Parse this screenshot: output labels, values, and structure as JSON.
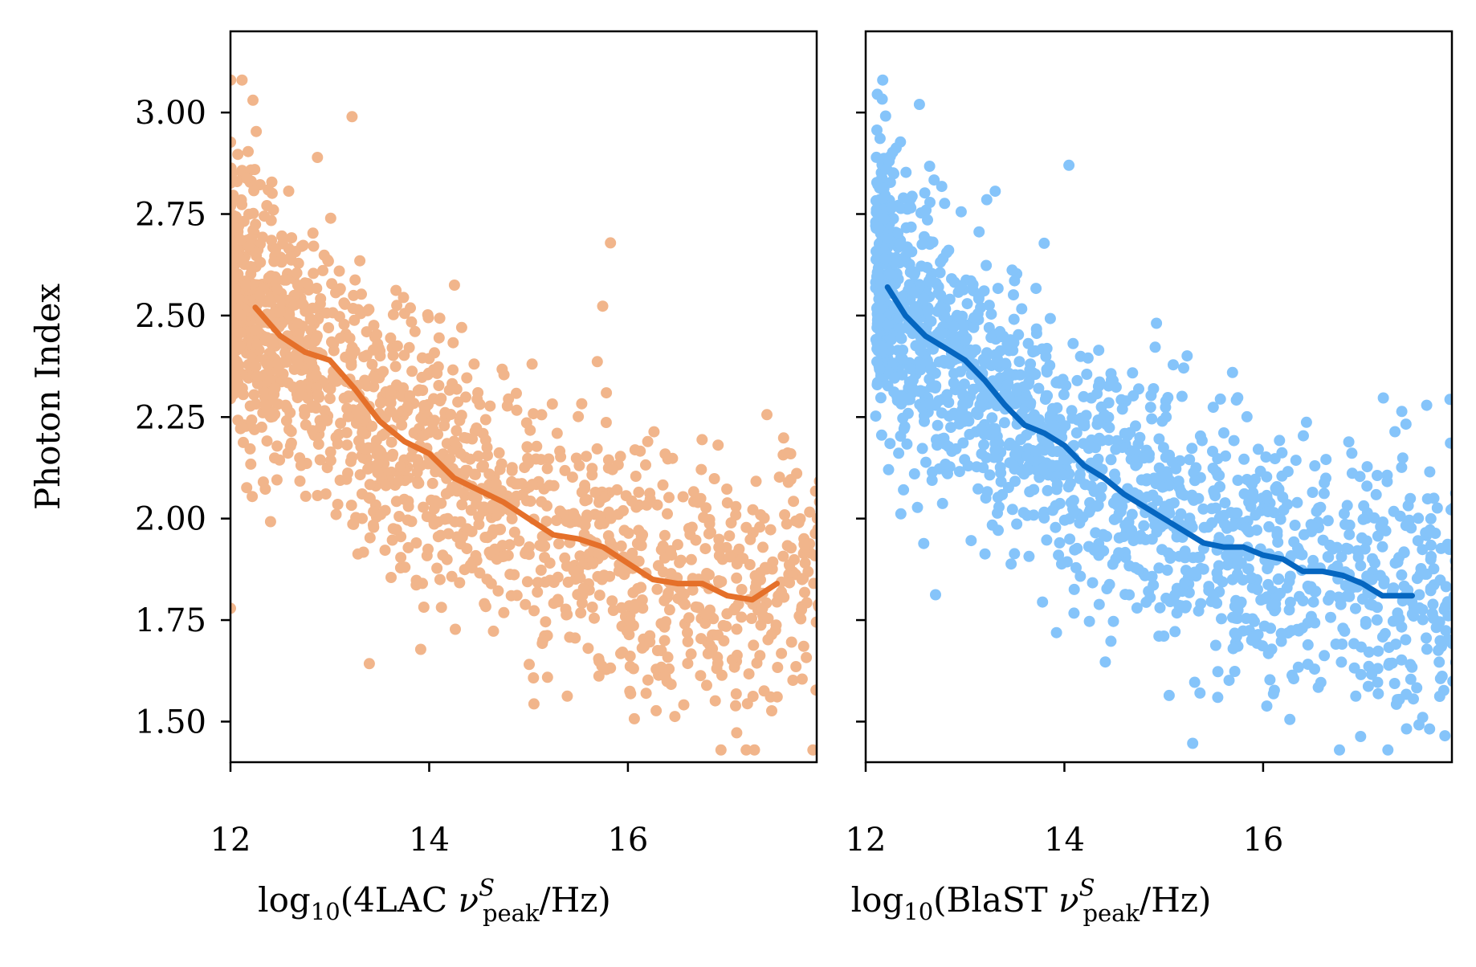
{
  "chart_data": [
    {
      "type": "scatter",
      "panel": "left",
      "xlabel": {
        "prefix": "log",
        "sub": "10",
        "open": "(4LAC ",
        "nu": "ν",
        "sup": "S",
        "peak": "peak",
        "close": "/Hz)"
      },
      "ylabel": "Photon Index",
      "xlim": [
        12,
        17.9
      ],
      "ylim": [
        1.4,
        3.2
      ],
      "xticks": [
        "12",
        "14",
        "16"
      ],
      "yticks": [
        "1.50",
        "1.75",
        "2.00",
        "2.25",
        "2.50",
        "2.75",
        "3.00"
      ],
      "colors": {
        "points": "#f1b58b",
        "line": "#e5702a"
      },
      "scatter_summary": {
        "n_points": 1600,
        "trend": "photon index decreases with increasing log peak frequency",
        "x_range": [
          12.0,
          17.9
        ],
        "y_range": [
          1.43,
          3.08
        ]
      },
      "trend_line": {
        "x": [
          12.25,
          12.5,
          12.75,
          13.0,
          13.25,
          13.5,
          13.75,
          14.0,
          14.25,
          14.5,
          14.75,
          15.0,
          15.25,
          15.5,
          15.75,
          16.0,
          16.25,
          16.5,
          16.75,
          17.0,
          17.25,
          17.5
        ],
        "y": [
          2.52,
          2.45,
          2.41,
          2.39,
          2.32,
          2.24,
          2.19,
          2.16,
          2.1,
          2.07,
          2.04,
          2.0,
          1.96,
          1.95,
          1.93,
          1.89,
          1.85,
          1.84,
          1.84,
          1.81,
          1.8,
          1.84
        ]
      }
    },
    {
      "type": "scatter",
      "panel": "right",
      "xlabel": {
        "prefix": "log",
        "sub": "10",
        "open": "(BlaST ",
        "nu": "ν",
        "sup": "S",
        "peak": "peak",
        "close": "/Hz)"
      },
      "ylabel": "",
      "xlim": [
        12,
        17.9
      ],
      "ylim": [
        1.4,
        3.2
      ],
      "xticks": [
        "12",
        "14",
        "16"
      ],
      "yticks": [
        "1.50",
        "1.75",
        "2.00",
        "2.25",
        "2.50",
        "2.75",
        "3.00"
      ],
      "colors": {
        "points": "#85c4fa",
        "line": "#0566c0"
      },
      "scatter_summary": {
        "n_points": 1700,
        "trend": "photon index decreases with increasing log peak frequency",
        "x_range": [
          12.1,
          17.9
        ],
        "y_range": [
          1.43,
          3.08
        ]
      },
      "trend_line": {
        "x": [
          12.22,
          12.4,
          12.6,
          12.8,
          13.0,
          13.2,
          13.4,
          13.6,
          13.8,
          14.0,
          14.2,
          14.4,
          14.6,
          14.8,
          15.0,
          15.2,
          15.4,
          15.6,
          15.8,
          16.0,
          16.2,
          16.4,
          16.6,
          16.8,
          17.0,
          17.2,
          17.5
        ],
        "y": [
          2.57,
          2.5,
          2.45,
          2.42,
          2.39,
          2.34,
          2.28,
          2.23,
          2.21,
          2.18,
          2.13,
          2.1,
          2.06,
          2.03,
          2.0,
          1.97,
          1.94,
          1.93,
          1.93,
          1.91,
          1.9,
          1.87,
          1.87,
          1.86,
          1.84,
          1.81,
          1.81
        ]
      }
    }
  ]
}
